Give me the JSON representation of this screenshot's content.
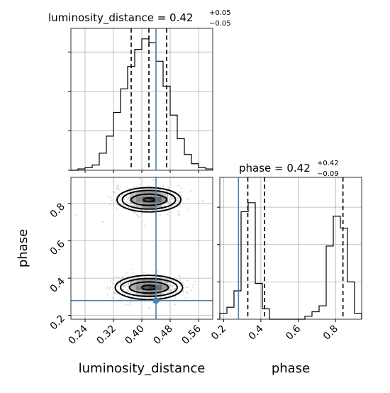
{
  "chart_data": [
    {
      "type": "histogram",
      "panel": "luminosity_distance marginal",
      "title": "luminosity_distance = 0.42",
      "title_value": "luminosity_distance = 0.42",
      "title_plus": "+0.05",
      "title_minus": "−0.05",
      "x_ticks": [
        0.24,
        0.32,
        0.4,
        0.48,
        0.56
      ],
      "xlim": [
        0.2,
        0.6
      ],
      "bins": [
        0.2,
        0.22,
        0.24,
        0.26,
        0.28,
        0.3,
        0.32,
        0.34,
        0.36,
        0.38,
        0.4,
        0.42,
        0.44,
        0.46,
        0.48,
        0.5,
        0.52,
        0.54,
        0.56,
        0.58,
        0.6
      ],
      "counts": [
        0.0,
        0.01,
        0.02,
        0.04,
        0.13,
        0.26,
        0.44,
        0.62,
        0.79,
        0.92,
        1.0,
        0.97,
        0.83,
        0.64,
        0.42,
        0.24,
        0.12,
        0.05,
        0.02,
        0.01
      ],
      "quantiles": [
        0.37,
        0.42,
        0.47
      ],
      "truth": 0.44
    },
    {
      "type": "histogram",
      "panel": "phase marginal",
      "title": "phase = 0.42",
      "title_value": "phase = 0.42",
      "title_plus": "+0.42",
      "title_minus": "−0.09",
      "x_ticks": [
        0.2,
        0.4,
        0.6,
        0.8
      ],
      "xlim": [
        0.18,
        0.94
      ],
      "bins": [
        0.18,
        0.218,
        0.256,
        0.294,
        0.332,
        0.37,
        0.408,
        0.446,
        0.484,
        0.522,
        0.56,
        0.598,
        0.636,
        0.674,
        0.712,
        0.75,
        0.788,
        0.826,
        0.864,
        0.902,
        0.94
      ],
      "counts": [
        0.04,
        0.08,
        0.19,
        0.72,
        0.78,
        0.24,
        0.07,
        0.0,
        0.0,
        0.0,
        0.0,
        0.0,
        0.02,
        0.05,
        0.09,
        0.49,
        0.69,
        0.61,
        0.25,
        0.04
      ],
      "quantiles": [
        0.33,
        0.42,
        0.84
      ],
      "truth": 0.28
    },
    {
      "type": "scatter",
      "panel": "luminosity_distance vs phase (2D posterior)",
      "xlabel": "luminosity_distance",
      "ylabel": "phase",
      "x_ticks": [
        0.24,
        0.32,
        0.4,
        0.48,
        0.56
      ],
      "y_ticks": [
        0.2,
        0.4,
        0.6,
        0.8
      ],
      "xlim": [
        0.2,
        0.6
      ],
      "ylim": [
        0.18,
        0.94
      ],
      "clusters": [
        {
          "center_x": 0.42,
          "center_y": 0.82,
          "contour_rx": [
            0.015,
            0.05,
            0.075,
            0.09
          ],
          "contour_ry": [
            0.01,
            0.03,
            0.05,
            0.065
          ]
        },
        {
          "center_x": 0.42,
          "center_y": 0.35,
          "contour_rx": [
            0.02,
            0.055,
            0.08,
            0.095
          ],
          "contour_ry": [
            0.012,
            0.03,
            0.048,
            0.065
          ]
        }
      ],
      "truth_point": [
        0.44,
        0.28
      ]
    },
    {
      "type": "empty",
      "panel": "phase marginal x-axis",
      "xlabel": "phase"
    }
  ],
  "colors": {
    "truth": "#4682b4",
    "histogram": "#000000",
    "grid": "#b0b0b0",
    "scatter_points": "#9a9a9a"
  }
}
